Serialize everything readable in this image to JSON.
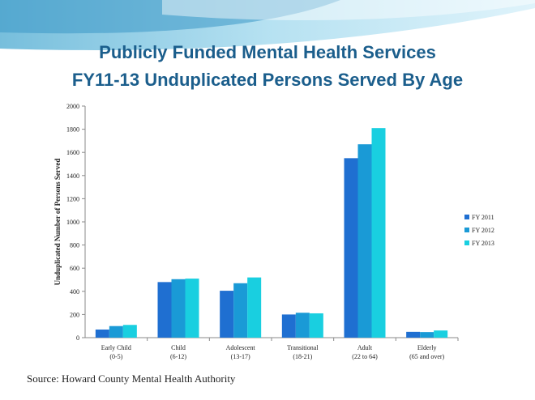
{
  "title_line1": "Publicly Funded Mental Health Services",
  "title_line2": "FY11-13 Unduplicated Persons Served By Age",
  "source": "Source: Howard County Mental Health Authority",
  "colors": {
    "title": "#1b5e8c",
    "fy2011": "#1f6fd1",
    "fy2012": "#1a9ad6",
    "fy2013": "#19cfe0"
  },
  "chart_data": {
    "type": "bar",
    "title": "Publicly Funded Mental Health Services FY11-13 Unduplicated Persons Served By Age",
    "xlabel": "",
    "ylabel": "Unduplicated Number of Persons Served",
    "ylim": [
      0,
      2000
    ],
    "yticks": [
      0,
      200,
      400,
      600,
      800,
      1000,
      1200,
      1400,
      1600,
      1800,
      2000
    ],
    "grid": false,
    "legend_position": "right",
    "categories": [
      [
        "Early Child",
        "(0-5)"
      ],
      [
        "Child",
        "(6-12)"
      ],
      [
        "Adolescent",
        "(13-17)"
      ],
      [
        "Transitional",
        "(18-21)"
      ],
      [
        "Adult",
        "(22 to 64)"
      ],
      [
        "Elderly",
        "(65 and over)"
      ]
    ],
    "series": [
      {
        "name": "FY 2011",
        "color": "#1f6fd1",
        "values": [
          70,
          480,
          405,
          200,
          1550,
          50
        ]
      },
      {
        "name": "FY 2012",
        "color": "#1a9ad6",
        "values": [
          100,
          505,
          470,
          215,
          1670,
          48
        ]
      },
      {
        "name": "FY 2013",
        "color": "#19cfe0",
        "values": [
          110,
          510,
          520,
          210,
          1810,
          62
        ]
      }
    ]
  }
}
